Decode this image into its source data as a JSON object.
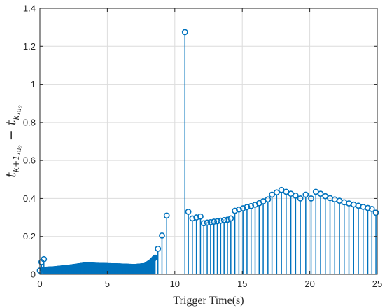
{
  "chart_data": {
    "type": "stem",
    "xlabel": "Trigger Time(s)",
    "ylabel": "t_{k+1,u_2} − t_{k,u_2}",
    "ylabel_parts": {
      "base1": "t",
      "sub1": "k+1,",
      "subsub1": "u",
      "subsub1b": "2",
      "minus": " − ",
      "base2": "t",
      "sub2": "k,",
      "subsub2": "u",
      "subsub2b": "2"
    },
    "xlim": [
      0,
      25
    ],
    "ylim": [
      0,
      1.4
    ],
    "xticks": [
      0,
      5,
      10,
      15,
      20,
      25
    ],
    "yticks": [
      0,
      0.2,
      0.4,
      0.6,
      0.8,
      1,
      1.2,
      1.4
    ],
    "xtick_labels": [
      "0",
      "5",
      "10",
      "15",
      "20",
      "25"
    ],
    "ytick_labels": [
      "0",
      "0.2",
      "0.4",
      "0.6",
      "0.8",
      "1",
      "1.2",
      "1.4"
    ],
    "grid": true,
    "color": "#0072BD",
    "series": [
      {
        "points": [
          [
            0.0,
            0.02
          ],
          [
            0.12,
            0.065
          ],
          [
            0.3,
            0.08
          ],
          [
            8.75,
            0.135
          ],
          [
            9.05,
            0.205
          ],
          [
            9.4,
            0.31
          ],
          [
            10.75,
            1.275
          ],
          [
            11.0,
            0.33
          ],
          [
            11.3,
            0.295
          ],
          [
            11.6,
            0.3
          ],
          [
            11.9,
            0.305
          ],
          [
            12.15,
            0.27
          ],
          [
            12.4,
            0.273
          ],
          [
            12.65,
            0.275
          ],
          [
            12.9,
            0.278
          ],
          [
            13.15,
            0.28
          ],
          [
            13.4,
            0.283
          ],
          [
            13.65,
            0.286
          ],
          [
            13.9,
            0.288
          ],
          [
            14.15,
            0.295
          ],
          [
            14.45,
            0.335
          ],
          [
            14.75,
            0.342
          ],
          [
            15.05,
            0.348
          ],
          [
            15.35,
            0.355
          ],
          [
            15.65,
            0.36
          ],
          [
            15.95,
            0.367
          ],
          [
            16.25,
            0.375
          ],
          [
            16.55,
            0.385
          ],
          [
            16.9,
            0.395
          ],
          [
            17.2,
            0.42
          ],
          [
            17.55,
            0.432
          ],
          [
            17.9,
            0.445
          ],
          [
            18.25,
            0.435
          ],
          [
            18.6,
            0.425
          ],
          [
            18.95,
            0.415
          ],
          [
            19.3,
            0.4
          ],
          [
            19.7,
            0.42
          ],
          [
            20.1,
            0.4
          ],
          [
            20.45,
            0.435
          ],
          [
            20.8,
            0.425
          ],
          [
            21.15,
            0.412
          ],
          [
            21.5,
            0.402
          ],
          [
            21.85,
            0.395
          ],
          [
            22.2,
            0.388
          ],
          [
            22.55,
            0.38
          ],
          [
            22.9,
            0.374
          ],
          [
            23.25,
            0.368
          ],
          [
            23.6,
            0.362
          ],
          [
            23.95,
            0.356
          ],
          [
            24.3,
            0.35
          ],
          [
            24.6,
            0.345
          ],
          [
            24.9,
            0.325
          ]
        ],
        "dense_band": {
          "x_start": 0.2,
          "x_end": 8.55,
          "spacing": 0.03,
          "y_profile": [
            [
              0.2,
              0.025
            ],
            [
              1.0,
              0.028
            ],
            [
              2.0,
              0.035
            ],
            [
              3.0,
              0.045
            ],
            [
              3.5,
              0.05
            ],
            [
              4.0,
              0.047
            ],
            [
              5.0,
              0.045
            ],
            [
              6.0,
              0.043
            ],
            [
              7.0,
              0.04
            ],
            [
              7.8,
              0.045
            ],
            [
              8.1,
              0.06
            ],
            [
              8.3,
              0.07
            ],
            [
              8.55,
              0.09
            ]
          ]
        }
      }
    ]
  }
}
